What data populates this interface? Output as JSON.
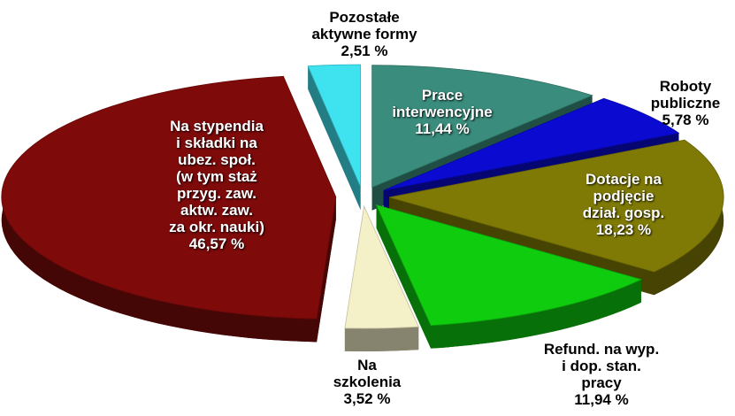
{
  "chart_data": {
    "type": "pie",
    "categories": [
      "Prace\ninterwencyjne",
      "Roboty\npubliczne",
      "Dotacje na\npodjęcie\ndział. gosp.",
      "Refund. na wyp.\ni dop. stan.\npracy",
      "Na\nszkolenia",
      "Na stypendia\ni składki na\nubez. społ.\n(w tym staż\nprzyg. zaw.\naktw. zaw.\nza okr. nauki)",
      "Pozostałe\naktywne formy"
    ],
    "values": [
      11.44,
      5.78,
      18.23,
      11.94,
      3.52,
      46.57,
      2.51
    ],
    "value_labels": [
      "11,44 %",
      "5,78 %",
      "18,23 %",
      "11,94 %",
      "3,52 %",
      "46,57 %",
      "2,51 %"
    ],
    "colors": [
      "#3a8c7c",
      "#0a0ad0",
      "#7f7a05",
      "#0fcc0f",
      "#f4f0c8",
      "#7e0a0a",
      "#3fe3f0"
    ]
  }
}
